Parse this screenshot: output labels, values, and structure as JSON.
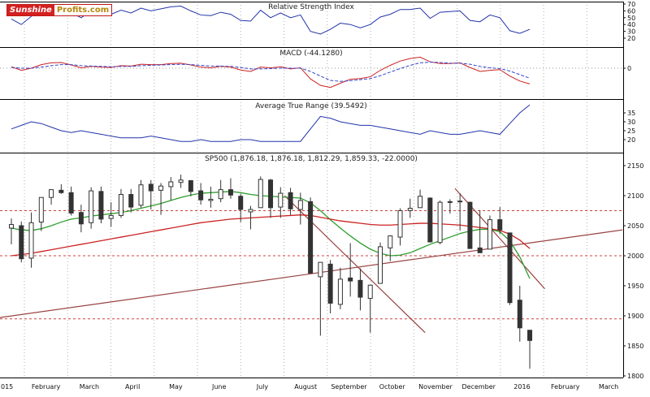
{
  "logo": {
    "part1": "Sunshine",
    "part2": "Profits.com"
  },
  "colors": {
    "indicator_line": "#2233aa",
    "macd_line": "#cc2222",
    "macd_signal": "#3344cc",
    "ma_fast": "#2e9e2e",
    "ma_slow": "#cc2222",
    "candle": "#333333",
    "trendline": "#994040",
    "support_dotted": "#d04040",
    "month_grid": "#b0b0b0",
    "panel_border": "#000000"
  },
  "chart_data": {
    "type": "multi-panel (line indicators + candlestick price)",
    "x_unit": "weekly bars, late Jan 2015 - mid Jan 2016",
    "x_axis_months": [
      "015",
      "February",
      "March",
      "April",
      "May",
      "June",
      "July",
      "August",
      "September",
      "October",
      "November",
      "December",
      "2016",
      "February",
      "March"
    ],
    "panels": [
      {
        "id": "rsi",
        "type": "line",
        "title": "Relative Strength Index",
        "ylim": [
          15,
          75
        ],
        "yticks": [
          70,
          60,
          50,
          40,
          30,
          20
        ],
        "series": [
          {
            "name": "RSI",
            "color": "#2233aa",
            "values": [
              48,
              40,
              52,
              60,
              65,
              64,
              57,
              50,
              60,
              53,
              55,
              61,
              57,
              64,
              60,
              63,
              66,
              67,
              60,
              54,
              53,
              58,
              55,
              46,
              45,
              61,
              50,
              57,
              50,
              54,
              30,
              26,
              33,
              42,
              40,
              35,
              40,
              51,
              55,
              62,
              62,
              64,
              49,
              58,
              59,
              60,
              46,
              44,
              54,
              50,
              31,
              27,
              33
            ]
          }
        ]
      },
      {
        "id": "macd",
        "type": "line",
        "title": "MACD (-44.1280)",
        "ylim": [
          -85,
          45
        ],
        "yticks": [
          0
        ],
        "series": [
          {
            "name": "MACD",
            "color": "#cc2222",
            "values": [
              4,
              -6,
              0,
              10,
              15,
              16,
              9,
              1,
              5,
              3,
              2,
              7,
              6,
              11,
              10,
              10,
              13,
              14,
              9,
              3,
              1,
              5,
              3,
              -5,
              -9,
              3,
              1,
              4,
              -2,
              1,
              -30,
              -48,
              -54,
              -42,
              -31,
              -29,
              -24,
              -6,
              8,
              20,
              27,
              31,
              18,
              13,
              13,
              15,
              2,
              -9,
              -6,
              -4,
              -22,
              -36,
              -44
            ]
          },
          {
            "name": "Signal",
            "color": "#3344cc",
            "dashed": true,
            "values": [
              2,
              0,
              0,
              3,
              7,
              10,
              10,
              7,
              6,
              5,
              4,
              5,
              5,
              7,
              8,
              9,
              10,
              11,
              10,
              8,
              6,
              6,
              5,
              2,
              -2,
              -2,
              -1,
              0,
              0,
              0,
              -9,
              -22,
              -34,
              -37,
              -35,
              -32,
              -29,
              -21,
              -11,
              -1,
              8,
              15,
              17,
              16,
              14,
              14,
              11,
              5,
              1,
              -1,
              -8,
              -18,
              -28
            ]
          }
        ]
      },
      {
        "id": "atr",
        "type": "line",
        "title": "Average True Range (39.5492)",
        "ylim": [
          17,
          43
        ],
        "yticks": [
          35,
          30,
          25,
          20
        ],
        "series": [
          {
            "name": "ATR",
            "color": "#2233aa",
            "values": [
              26,
              28,
              30,
              29,
              27,
              25,
              24,
              25,
              24,
              23,
              22,
              21,
              21,
              21,
              22,
              21,
              20,
              19,
              19,
              20,
              19,
              19,
              19,
              20,
              20,
              19,
              19,
              19,
              19,
              19,
              26,
              33,
              32,
              30,
              29,
              28,
              28,
              27,
              26,
              25,
              24,
              23,
              25,
              24,
              23,
              23,
              24,
              25,
              24,
              23,
              29,
              35,
              39.5
            ]
          }
        ]
      },
      {
        "id": "price",
        "type": "candlestick",
        "title": "SP500 (1,876.18, 1,876.18, 1,812.29, 1,859.33, -22.0000)",
        "ylim": [
          1793,
          2157
        ],
        "yticks": [
          2150,
          2100,
          2050,
          2000,
          1950,
          1900,
          1850,
          1800
        ],
        "ohlc": [
          [
            2046,
            2062,
            2019,
            2052
          ],
          [
            2050,
            2057,
            1989,
            1995
          ],
          [
            1996,
            2072,
            1980,
            2055
          ],
          [
            2056,
            2097,
            2041,
            2097
          ],
          [
            2097,
            2110,
            2085,
            2110
          ],
          [
            2109,
            2119,
            2103,
            2105
          ],
          [
            2105,
            2115,
            2067,
            2071
          ],
          [
            2072,
            2085,
            2039,
            2053
          ],
          [
            2055,
            2114,
            2045,
            2108
          ],
          [
            2107,
            2115,
            2054,
            2061
          ],
          [
            2062,
            2089,
            2048,
            2067
          ],
          [
            2067,
            2111,
            2063,
            2102
          ],
          [
            2102,
            2111,
            2072,
            2081
          ],
          [
            2084,
            2126,
            2080,
            2118
          ],
          [
            2119,
            2126,
            2077,
            2108
          ],
          [
            2109,
            2121,
            2068,
            2116
          ],
          [
            2115,
            2131,
            2092,
            2123
          ],
          [
            2122,
            2135,
            2113,
            2126
          ],
          [
            2125,
            2126,
            2099,
            2107
          ],
          [
            2108,
            2121,
            2085,
            2093
          ],
          [
            2092,
            2115,
            2080,
            2094
          ],
          [
            2095,
            2126,
            2089,
            2110
          ],
          [
            2110,
            2129,
            2095,
            2101
          ],
          [
            2099,
            2103,
            2056,
            2077
          ],
          [
            2073,
            2083,
            2044,
            2077
          ],
          [
            2080,
            2132,
            2080,
            2127
          ],
          [
            2126,
            2128,
            2063,
            2080
          ],
          [
            2081,
            2114,
            2063,
            2104
          ],
          [
            2105,
            2113,
            2068,
            2078
          ],
          [
            2077,
            2105,
            2052,
            2092
          ],
          [
            2090,
            2097,
            1971,
            1971
          ],
          [
            1965,
            1989,
            1867,
            1989
          ],
          [
            1986,
            1993,
            1904,
            1921
          ],
          [
            1919,
            1980,
            1911,
            1961
          ],
          [
            1963,
            2021,
            1932,
            1958
          ],
          [
            1959,
            1979,
            1909,
            1931
          ],
          [
            1929,
            1952,
            1872,
            1951
          ],
          [
            1954,
            2022,
            1954,
            2015
          ],
          [
            2013,
            2034,
            1991,
            2033
          ],
          [
            2031,
            2079,
            2017,
            2075
          ],
          [
            2075,
            2095,
            2063,
            2079
          ],
          [
            2080,
            2110,
            2080,
            2099
          ],
          [
            2096,
            2097,
            2022,
            2023
          ],
          [
            2022,
            2092,
            2019,
            2089
          ],
          [
            2089,
            2094,
            2070,
            2090
          ],
          [
            2090,
            2104,
            2042,
            2091
          ],
          [
            2089,
            2090,
            2012,
            2012
          ],
          [
            2013,
            2076,
            2005,
            2005
          ],
          [
            2011,
            2067,
            2011,
            2060
          ],
          [
            2060,
            2081,
            2036,
            2043
          ],
          [
            2038,
            2038,
            1918,
            1922
          ],
          [
            1926,
            1950,
            1857,
            1880
          ],
          [
            1876,
            1876,
            1812,
            1859
          ]
        ],
        "overlays": [
          {
            "name": "MA-fast",
            "color": "#2e9e2e",
            "values": [
              2046,
              2043,
              2042,
              2045,
              2050,
              2056,
              2061,
              2063,
              2066,
              2068,
              2070,
              2072,
              2075,
              2079,
              2083,
              2087,
              2092,
              2097,
              2101,
              2104,
              2105,
              2106,
              2107,
              2105,
              2102,
              2100,
              2099,
              2098,
              2097,
              2096,
              2088,
              2075,
              2060,
              2046,
              2033,
              2021,
              2011,
              2004,
              2000,
              2001,
              2005,
              2012,
              2019,
              2025,
              2031,
              2037,
              2041,
              2044,
              2044,
              2040,
              2025,
              1998,
              1962
            ]
          },
          {
            "name": "MA-slow",
            "color": "#cc2222",
            "values": [
              2000,
              2002,
              2004,
              2007,
              2010,
              2013,
              2016,
              2019,
              2022,
              2025,
              2028,
              2031,
              2034,
              2037,
              2040,
              2043,
              2046,
              2049,
              2052,
              2055,
              2057,
              2059,
              2061,
              2062,
              2063,
              2064,
              2065,
              2066,
              2067,
              2068,
              2067,
              2064,
              2061,
              2058,
              2056,
              2054,
              2052,
              2051,
              2051,
              2052,
              2053,
              2054,
              2054,
              2053,
              2052,
              2051,
              2049,
              2047,
              2045,
              2042,
              2036,
              2026,
              2012
            ]
          }
        ],
        "trendlines": [
          {
            "name": "rising-support",
            "t1": -1.2,
            "p1": 1897,
            "t2": 61.3,
            "p2": 2043
          },
          {
            "name": "falling-resistance",
            "t1": 27.4,
            "p1": 2100,
            "t2": 41.5,
            "p2": 1872
          },
          {
            "name": "short-decline",
            "t1": 44.5,
            "p1": 2112,
            "t2": 53.5,
            "p2": 1945
          }
        ],
        "support_resistance": [
          2075,
          2000,
          1895
        ]
      }
    ]
  }
}
